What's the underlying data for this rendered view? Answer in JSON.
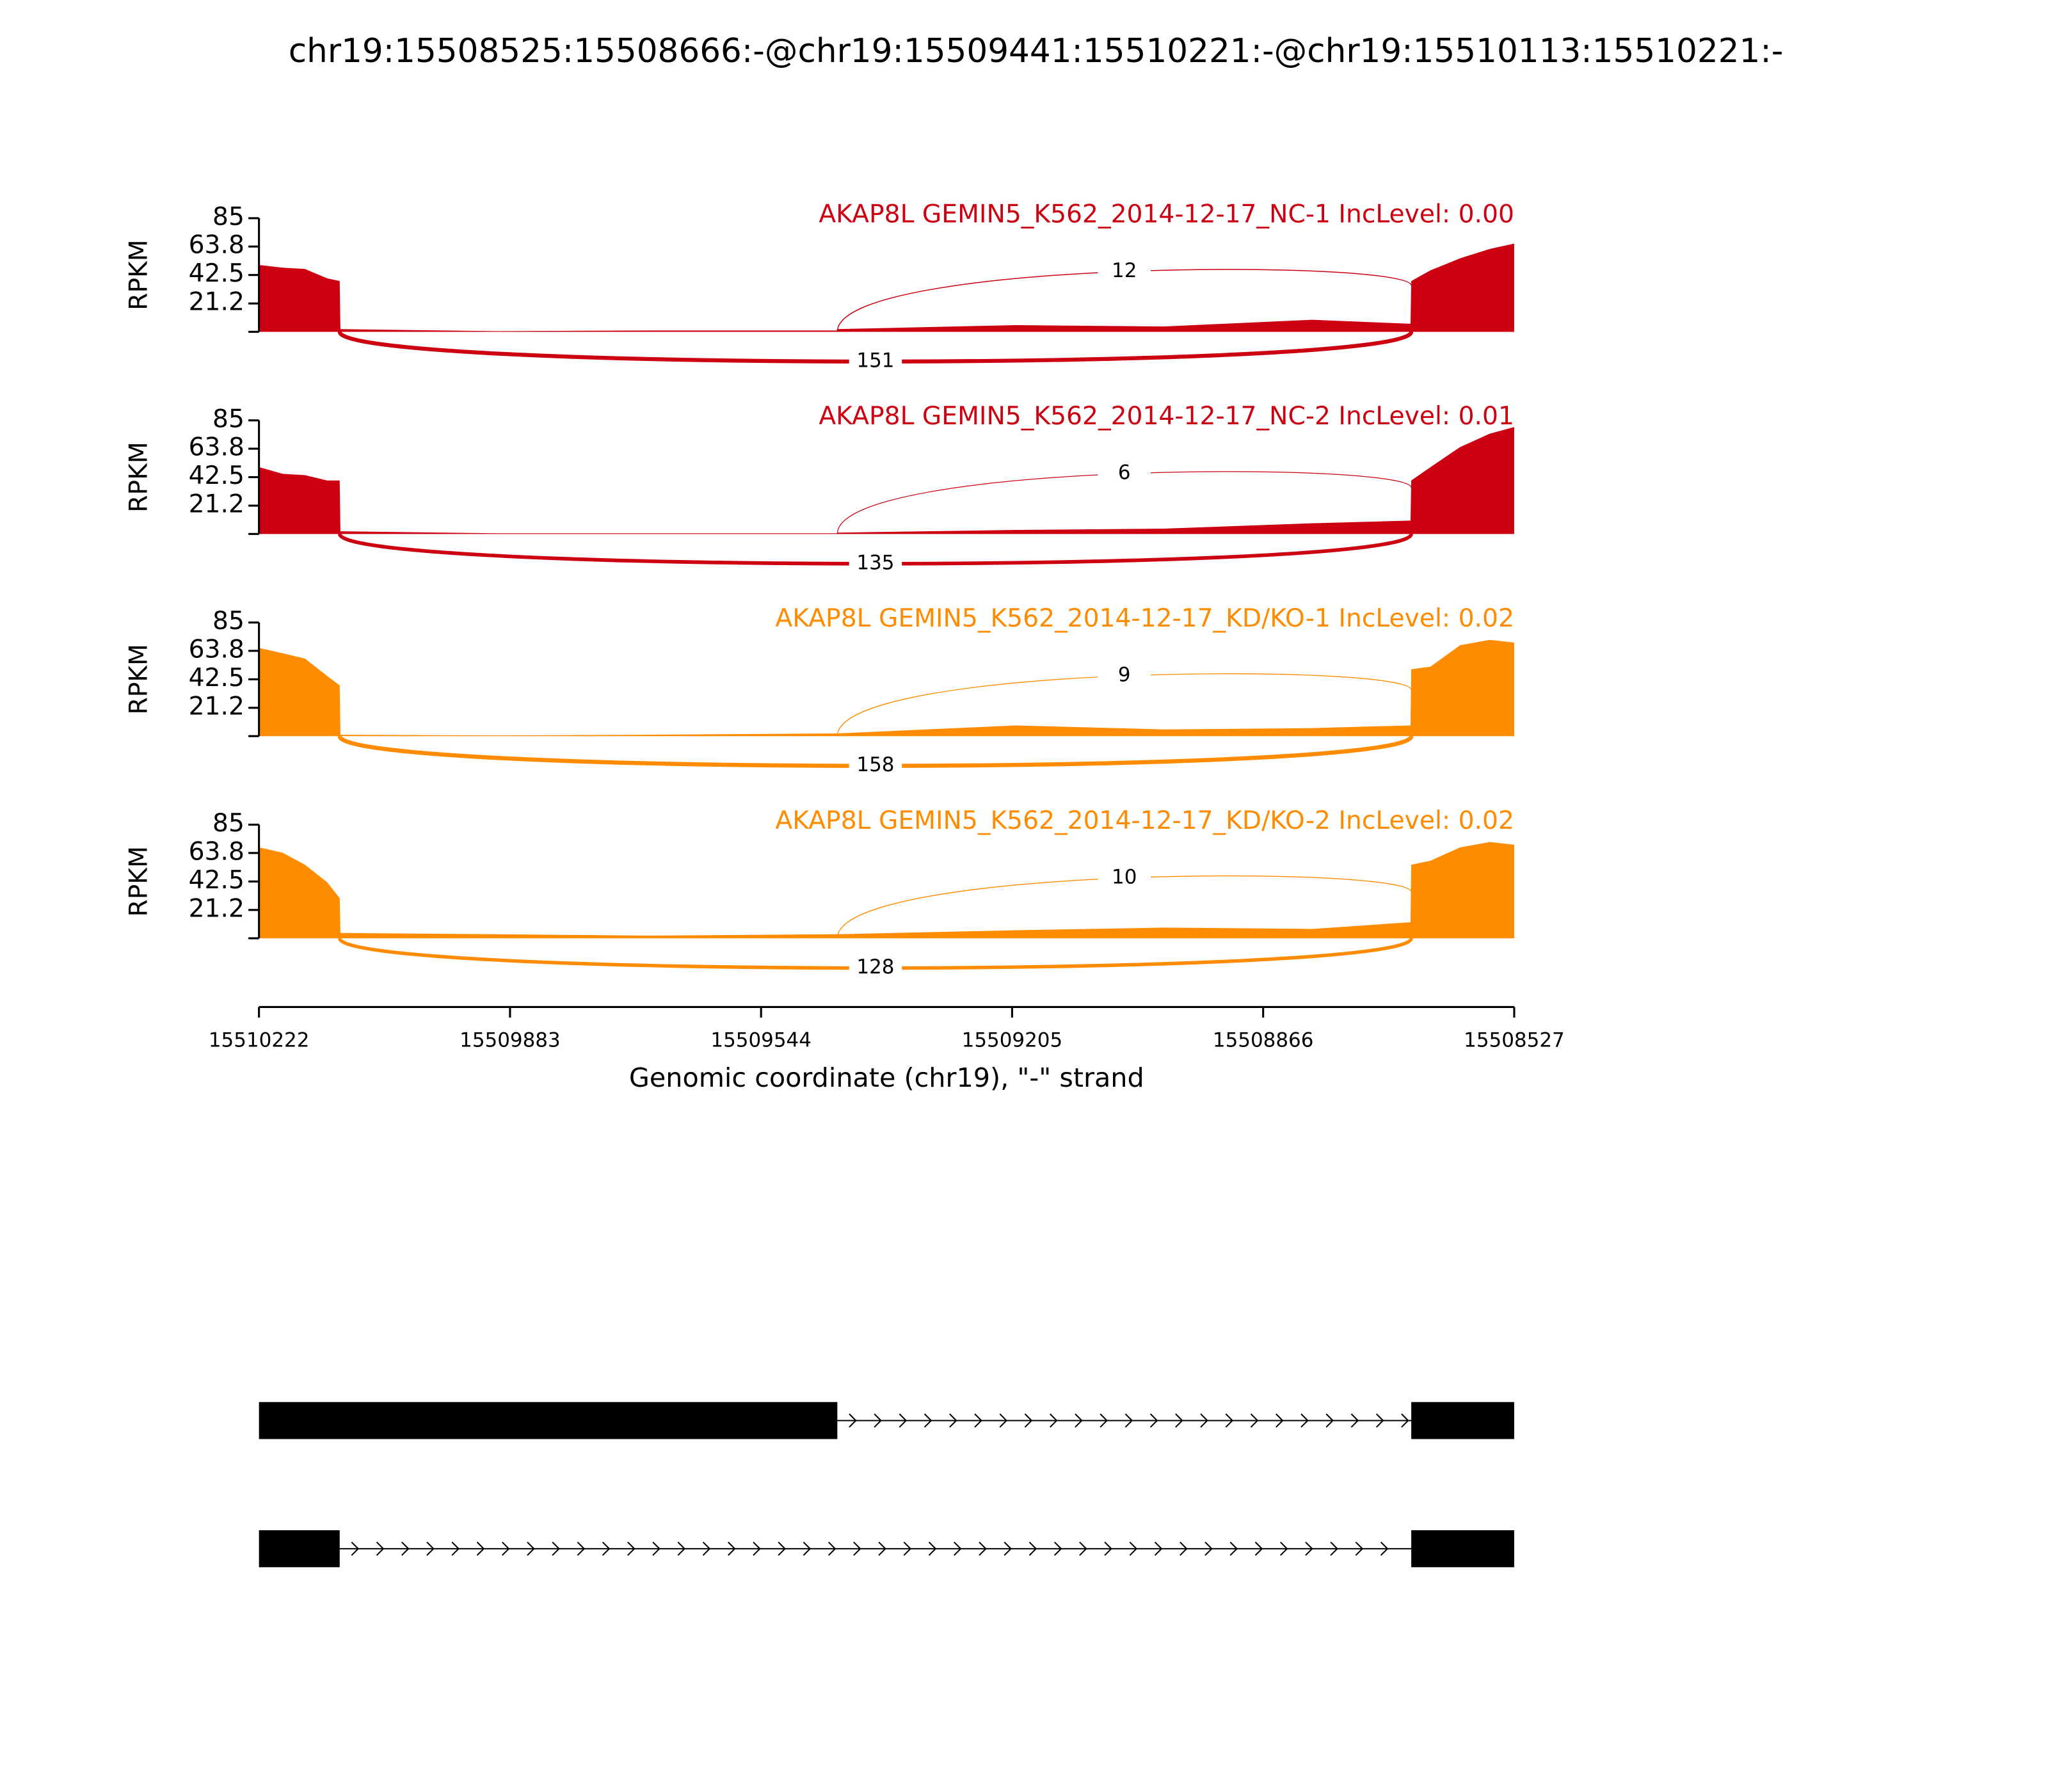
{
  "chart_data": {
    "type": "sashimi",
    "title": "chr19:15508525:15508666:-@chr19:15509441:15510221:-@chr19:15510113:15510221:-",
    "y_label": "RPKM",
    "x_label": "Genomic coordinate (chr19), \"-\" strand",
    "xlim": [
      15510222,
      15508527
    ],
    "xticks": [
      15510222,
      15509883,
      15509544,
      15509205,
      15508866,
      15508527
    ],
    "ylim": [
      0,
      85
    ],
    "yticks": [
      21.2,
      42.5,
      63.8,
      85
    ],
    "x": [
      15510222,
      15510190,
      15510160,
      15510130,
      15510113,
      15510112,
      15509900,
      15509700,
      15509442,
      15509441,
      15509200,
      15509000,
      15508800,
      15508667,
      15508666,
      15508640,
      15508600,
      15508560,
      15508527
    ],
    "junctions": [
      {
        "start": 15510113,
        "end": 15508666
      },
      {
        "start": 15509441,
        "end": 15508666
      }
    ],
    "series": [
      {
        "name": "AKAP8L GEMIN5_K562_2014-12-17_NC-1 IncLevel: 0.00",
        "color": "#cc0011",
        "values": [
          50,
          48,
          47,
          40,
          38,
          2,
          0.5,
          1,
          1,
          2,
          5,
          4,
          9,
          6,
          38,
          46,
          55,
          62,
          66
        ],
        "junction_counts": [
          151,
          12
        ]
      },
      {
        "name": "AKAP8L GEMIN5_K562_2014-12-17_NC-2 IncLevel: 0.01",
        "color": "#cc0011",
        "values": [
          50,
          45,
          44,
          40,
          40,
          2,
          0.5,
          0.5,
          0.5,
          1,
          3,
          4,
          8,
          10,
          40,
          50,
          65,
          75,
          80
        ],
        "junction_counts": [
          135,
          6
        ]
      },
      {
        "name": "AKAP8L GEMIN5_K562_2014-12-17_KD/KO-1 IncLevel: 0.02",
        "color": "#ff8c00",
        "values": [
          66,
          62,
          58,
          45,
          38,
          1,
          0.5,
          1,
          2,
          2,
          8,
          5,
          6,
          8,
          50,
          52,
          68,
          72,
          70
        ],
        "junction_counts": [
          158,
          9
        ]
      },
      {
        "name": "AKAP8L GEMIN5_K562_2014-12-17_KD/KO-2 IncLevel: 0.02",
        "color": "#ff8c00",
        "values": [
          68,
          64,
          55,
          42,
          30,
          4,
          3,
          2,
          3,
          3,
          6,
          8,
          7,
          12,
          55,
          58,
          68,
          72,
          70
        ],
        "junction_counts": [
          128,
          10
        ]
      }
    ],
    "transcripts": [
      {
        "exons": [
          [
            15510222,
            15509441
          ],
          [
            15508666,
            15508527
          ]
        ]
      },
      {
        "exons": [
          [
            15510222,
            15510113
          ],
          [
            15508666,
            15508527
          ]
        ]
      }
    ]
  }
}
